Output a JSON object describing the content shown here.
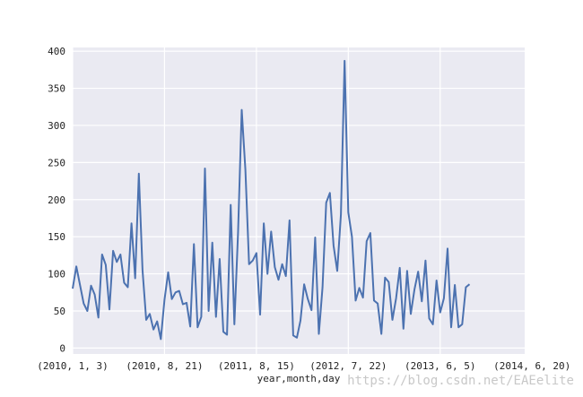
{
  "chart_data": {
    "type": "line",
    "xlabel": "year,month,day",
    "ylabel": "",
    "ylim": [
      -8,
      405
    ],
    "xlim": [
      0,
      123
    ],
    "grid": true,
    "colors": {
      "background": "#eaeaf2",
      "grid": "#ffffff",
      "line": "#4c72b0"
    },
    "yticks": [
      0,
      50,
      100,
      150,
      200,
      250,
      300,
      350,
      400
    ],
    "xticks": [
      {
        "index": 0,
        "label": "(2010, 1, 3)"
      },
      {
        "index": 25,
        "label": "(2010, 8, 21)"
      },
      {
        "index": 50,
        "label": "(2011, 8, 15)"
      },
      {
        "index": 75,
        "label": "(2012, 7, 22)"
      },
      {
        "index": 100,
        "label": "(2013, 6, 5)"
      },
      {
        "index": 125,
        "label": "(2014, 6, 20)"
      }
    ],
    "values": [
      80,
      110,
      85,
      60,
      50,
      84,
      72,
      41,
      126,
      112,
      52,
      131,
      116,
      126,
      88,
      82,
      168,
      94,
      235,
      105,
      38,
      46,
      25,
      36,
      12,
      65,
      102,
      66,
      75,
      77,
      59,
      61,
      29,
      140,
      28,
      42,
      242,
      50,
      142,
      42,
      120,
      22,
      18,
      193,
      32,
      155,
      321,
      240,
      113,
      118,
      128,
      45,
      168,
      100,
      157,
      109,
      92,
      113,
      97,
      172,
      17,
      14,
      37,
      86,
      66,
      51,
      149,
      19,
      82,
      196,
      209,
      138,
      104,
      180,
      387,
      183,
      150,
      64,
      81,
      68,
      144,
      155,
      64,
      60,
      19,
      95,
      89,
      38,
      67,
      108,
      26,
      104,
      46,
      79,
      103,
      63,
      118,
      40,
      32,
      91,
      48,
      67,
      134,
      28,
      85,
      28,
      32,
      82,
      86
    ]
  },
  "watermark": "https://blog.csdn.net/EAEelite"
}
